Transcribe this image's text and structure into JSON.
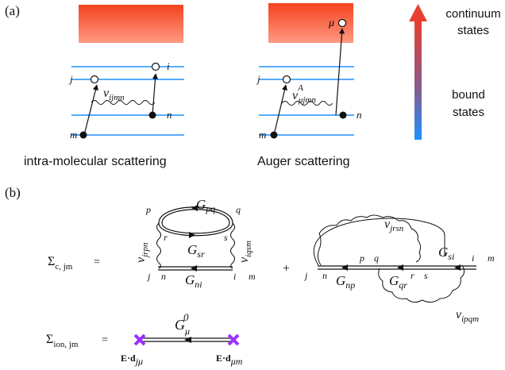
{
  "panel_a": {
    "label": "(a)",
    "intra": {
      "caption": "intra-molecular scattering",
      "label_j": "j",
      "label_i": "i",
      "label_n": "n",
      "label_m": "m",
      "coupling": "v",
      "coupling_sub": "ijmn"
    },
    "auger": {
      "caption": "Auger scattering",
      "label_mu": "μ",
      "label_j": "j",
      "label_n": "n",
      "label_m": "m",
      "coupling": "v",
      "coupling_sup": "A",
      "coupling_sub": "μjmn"
    },
    "legend": {
      "top_line1": "continuum",
      "top_line2": "states",
      "bottom_line1": "bound",
      "bottom_line2": "states",
      "color_top": "#e8402e",
      "color_bottom": "#1e90ff"
    }
  },
  "panel_b": {
    "label": "(b)",
    "sigma_c": {
      "symbol": "Σ",
      "sub": "c, jm",
      "equals": "=",
      "G_pq": "pq",
      "G_sr": "sr",
      "G_ni": "ni",
      "v_left_sub": "jrpn",
      "v_right_sub": "iqsm",
      "p": "p",
      "q": "q",
      "r": "r",
      "s": "s",
      "j": "j",
      "n": "n",
      "i": "i",
      "m": "m",
      "plus": "+",
      "j2": "j",
      "n2": "n",
      "p2": "p",
      "q2": "q",
      "r2": "r",
      "s2": "s",
      "i2": "i",
      "m2": "m",
      "G_np": "np",
      "G_qr": "qr",
      "G_si": "si",
      "v_top_sub": "jrsn",
      "v_bot_sub": "ipqm"
    },
    "sigma_ion": {
      "symbol": "Σ",
      "sub": "ion, jm",
      "equals": "=",
      "G": "G",
      "G_sub": "μ",
      "G_sup": "0",
      "ed_left": "E·d",
      "ed_left_sub": "jμ",
      "ed_right": "E·d",
      "ed_right_sub": "μm",
      "cross_color": "#9b30ff"
    }
  }
}
